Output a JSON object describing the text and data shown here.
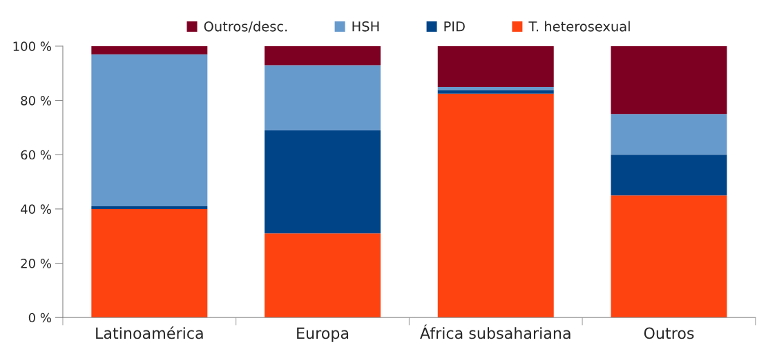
{
  "chart_data": {
    "type": "bar",
    "stacked": true,
    "categories": [
      "Latinoamérica",
      "Europa",
      "África subsahariana",
      "Outros"
    ],
    "series": [
      {
        "name": "T. heterosexual",
        "color": "#fe4311",
        "values": [
          40,
          31,
          82.5,
          45
        ]
      },
      {
        "name": "PID",
        "color": "#004488",
        "values": [
          1,
          38,
          1.3,
          15
        ]
      },
      {
        "name": "HSH",
        "color": "#6699cc",
        "values": [
          56,
          24,
          1.2,
          15
        ]
      },
      {
        "name": "Outros/desc.",
        "color": "#7d0022",
        "values": [
          3,
          7,
          15,
          25
        ]
      }
    ],
    "ylim": [
      0,
      100
    ],
    "yticks": [
      {
        "value": 0,
        "label": "0 %"
      },
      {
        "value": 20,
        "label": "20 %"
      },
      {
        "value": 40,
        "label": "40 %"
      },
      {
        "value": 60,
        "label": "60 %"
      },
      {
        "value": 80,
        "label": "80 %"
      },
      {
        "value": 100,
        "label": "100 %"
      }
    ],
    "grid": false,
    "legend": "top"
  }
}
